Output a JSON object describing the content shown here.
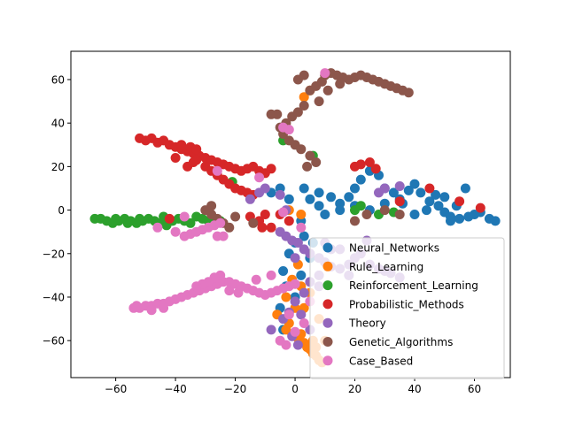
{
  "chart_data": {
    "type": "scatter",
    "title": "",
    "xlabel": "",
    "ylabel": "",
    "xlim": [
      -75.0,
      72.0
    ],
    "ylim": [
      -77.0,
      73.0
    ],
    "xticks": [
      -60,
      -40,
      -20,
      0,
      20,
      40,
      60
    ],
    "yticks": [
      -60,
      -40,
      -20,
      0,
      20,
      40,
      60
    ],
    "grid": false,
    "legend_position": "lower right",
    "series": [
      {
        "name": "Neural_Networks",
        "color": "#1f77b4",
        "points": [
          [
            3,
            10
          ],
          [
            5,
            5
          ],
          [
            8,
            8
          ],
          [
            12,
            6
          ],
          [
            15,
            3
          ],
          [
            18,
            6
          ],
          [
            20,
            10
          ],
          [
            22,
            14
          ],
          [
            25,
            18
          ],
          [
            28,
            16
          ],
          [
            30,
            10
          ],
          [
            33,
            8
          ],
          [
            35,
            5
          ],
          [
            38,
            9
          ],
          [
            40,
            12
          ],
          [
            42,
            8
          ],
          [
            45,
            4
          ],
          [
            48,
            2
          ],
          [
            50,
            -1
          ],
          [
            52,
            -3
          ],
          [
            55,
            -4
          ],
          [
            58,
            -3
          ],
          [
            60,
            -2
          ],
          [
            62,
            -1
          ],
          [
            65,
            -4
          ],
          [
            67,
            -5
          ],
          [
            30,
            3
          ],
          [
            25,
            0
          ],
          [
            20,
            2
          ],
          [
            15,
            0
          ],
          [
            10,
            -2
          ],
          [
            8,
            2
          ],
          [
            36,
            3
          ],
          [
            44,
            0
          ],
          [
            47,
            7
          ],
          [
            50,
            6
          ],
          [
            54,
            2
          ],
          [
            57,
            10
          ],
          [
            52,
            -5
          ],
          [
            40,
            -2
          ],
          [
            -2,
            5
          ],
          [
            -5,
            10
          ],
          [
            -8,
            8
          ],
          [
            2,
            -5
          ],
          [
            0,
            -15
          ],
          [
            -2,
            -20
          ],
          [
            -4,
            -28
          ],
          [
            -3,
            -35
          ],
          [
            -5,
            -45
          ],
          [
            -4,
            -55
          ],
          [
            0,
            -40
          ],
          [
            2,
            -30
          ],
          [
            5,
            -22
          ],
          [
            3,
            -12
          ],
          [
            6,
            -15
          ]
        ]
      },
      {
        "name": "Rule_Learning",
        "color": "#ff7f0e",
        "points": [
          [
            -3,
            -55
          ],
          [
            -1,
            -57
          ],
          [
            1,
            -59
          ],
          [
            3,
            -61
          ],
          [
            4,
            -63
          ],
          [
            5,
            -64
          ],
          [
            6,
            -66
          ],
          [
            7,
            -67
          ],
          [
            8,
            -69
          ],
          [
            9,
            -70
          ],
          [
            7,
            -63
          ],
          [
            6,
            -60
          ],
          [
            2,
            -57
          ],
          [
            -2,
            -52
          ],
          [
            0,
            -45
          ],
          [
            3,
            -45
          ],
          [
            5,
            -38
          ],
          [
            2,
            -35
          ],
          [
            -1,
            -32
          ],
          [
            1,
            -25
          ],
          [
            2,
            -2
          ],
          [
            -2,
            0
          ],
          [
            3,
            52
          ],
          [
            5,
            55
          ],
          [
            -6,
            -48
          ],
          [
            -3,
            -40
          ],
          [
            8,
            -50
          ],
          [
            10,
            -60
          ]
        ]
      },
      {
        "name": "Reinforcement_Learning",
        "color": "#2ca02c",
        "points": [
          [
            -67,
            -4
          ],
          [
            -65,
            -4
          ],
          [
            -63,
            -5
          ],
          [
            -61,
            -6
          ],
          [
            -59,
            -5
          ],
          [
            -57,
            -4
          ],
          [
            -55,
            -5
          ],
          [
            -53,
            -6
          ],
          [
            -51,
            -5
          ],
          [
            -49,
            -4
          ],
          [
            -47,
            -5
          ],
          [
            -45,
            -6
          ],
          [
            -43,
            -7
          ],
          [
            -41,
            -5
          ],
          [
            -39,
            -4
          ],
          [
            -37,
            -5
          ],
          [
            -35,
            -6
          ],
          [
            -33,
            -3
          ],
          [
            -31,
            -4
          ],
          [
            -29,
            -5
          ],
          [
            -27,
            -6
          ],
          [
            -25,
            -5
          ],
          [
            -60,
            -4
          ],
          [
            -56,
            -6
          ],
          [
            -44,
            -3
          ],
          [
            -52,
            -4
          ],
          [
            -21,
            13
          ],
          [
            -4,
            32
          ],
          [
            22,
            2
          ],
          [
            20,
            0
          ],
          [
            6,
            25
          ],
          [
            28,
            -2
          ],
          [
            33,
            -1
          ]
        ]
      },
      {
        "name": "Probabilistic_Methods",
        "color": "#d62728",
        "points": [
          [
            -52,
            33
          ],
          [
            -50,
            32
          ],
          [
            -48,
            33
          ],
          [
            -46,
            31
          ],
          [
            -44,
            32
          ],
          [
            -42,
            30
          ],
          [
            -40,
            29
          ],
          [
            -38,
            28
          ],
          [
            -36,
            27
          ],
          [
            -34,
            26
          ],
          [
            -32,
            25
          ],
          [
            -30,
            24
          ],
          [
            -28,
            23
          ],
          [
            -26,
            22
          ],
          [
            -24,
            21
          ],
          [
            -22,
            20
          ],
          [
            -20,
            19
          ],
          [
            -18,
            18
          ],
          [
            -16,
            19
          ],
          [
            -14,
            20
          ],
          [
            -12,
            18
          ],
          [
            -10,
            17
          ],
          [
            -8,
            19
          ],
          [
            -38,
            30
          ],
          [
            -35,
            29
          ],
          [
            -33,
            28
          ],
          [
            -30,
            20
          ],
          [
            -28,
            18
          ],
          [
            -26,
            16
          ],
          [
            -24,
            14
          ],
          [
            -22,
            12
          ],
          [
            -20,
            10
          ],
          [
            -18,
            9
          ],
          [
            -16,
            8
          ],
          [
            -14,
            7
          ],
          [
            -36,
            20
          ],
          [
            -33,
            23
          ],
          [
            -10,
            -2
          ],
          [
            -12,
            -5
          ],
          [
            -15,
            -3
          ],
          [
            20,
            20
          ],
          [
            22,
            21
          ],
          [
            25,
            22
          ],
          [
            27,
            19
          ],
          [
            -5,
            -2
          ],
          [
            -8,
            -8
          ],
          [
            -2,
            -5
          ],
          [
            35,
            4
          ],
          [
            -34,
            22
          ],
          [
            -40,
            24
          ],
          [
            62,
            1
          ],
          [
            55,
            4
          ],
          [
            45,
            10
          ],
          [
            -42,
            -4
          ],
          [
            -11,
            -8
          ]
        ]
      },
      {
        "name": "Theory",
        "color": "#9467bd",
        "points": [
          [
            -5,
            -10
          ],
          [
            -3,
            -12
          ],
          [
            -1,
            -14
          ],
          [
            1,
            -15
          ],
          [
            3,
            -18
          ],
          [
            5,
            -20
          ],
          [
            8,
            -22
          ],
          [
            10,
            -24
          ],
          [
            12,
            -26
          ],
          [
            15,
            -27
          ],
          [
            18,
            -25
          ],
          [
            20,
            -22
          ],
          [
            22,
            -20
          ],
          [
            25,
            -25
          ],
          [
            28,
            -27
          ],
          [
            30,
            -28
          ],
          [
            32,
            -29
          ],
          [
            35,
            -31
          ],
          [
            10,
            -15
          ],
          [
            12,
            -18
          ],
          [
            8,
            -30
          ],
          [
            5,
            -33
          ],
          [
            3,
            -38
          ],
          [
            0,
            -42
          ],
          [
            -2,
            -47
          ],
          [
            -4,
            -50
          ],
          [
            2,
            -48
          ],
          [
            -1,
            -58
          ],
          [
            5,
            -55
          ],
          [
            -15,
            5
          ],
          [
            -12,
            8
          ],
          [
            -5,
            7
          ],
          [
            -10,
            10
          ],
          [
            0,
            -22
          ],
          [
            15,
            -18
          ],
          [
            18,
            -30
          ],
          [
            24,
            -14
          ],
          [
            28,
            8
          ],
          [
            30,
            10
          ],
          [
            35,
            11
          ],
          [
            -8,
            -55
          ],
          [
            1,
            -62
          ],
          [
            8,
            -35
          ],
          [
            -3,
            0
          ]
        ]
      },
      {
        "name": "Genetic_Algorithms",
        "color": "#8c564b",
        "points": [
          [
            5,
            55
          ],
          [
            7,
            57
          ],
          [
            9,
            59
          ],
          [
            10,
            62
          ],
          [
            12,
            63
          ],
          [
            14,
            62
          ],
          [
            16,
            61
          ],
          [
            18,
            60
          ],
          [
            20,
            61
          ],
          [
            22,
            62
          ],
          [
            24,
            61
          ],
          [
            26,
            60
          ],
          [
            28,
            59
          ],
          [
            30,
            58
          ],
          [
            32,
            57
          ],
          [
            34,
            56
          ],
          [
            36,
            55
          ],
          [
            38,
            54
          ],
          [
            3,
            48
          ],
          [
            1,
            45
          ],
          [
            -1,
            43
          ],
          [
            -3,
            40
          ],
          [
            -5,
            38
          ],
          [
            -4,
            35
          ],
          [
            -2,
            32
          ],
          [
            0,
            30
          ],
          [
            2,
            28
          ],
          [
            5,
            25
          ],
          [
            7,
            22
          ],
          [
            4,
            20
          ],
          [
            -8,
            44
          ],
          [
            -6,
            44
          ],
          [
            1,
            60
          ],
          [
            3,
            62
          ],
          [
            -28,
            -2
          ],
          [
            -26,
            -4
          ],
          [
            -24,
            -6
          ],
          [
            -22,
            -8
          ],
          [
            -30,
            0
          ],
          [
            -28,
            2
          ],
          [
            20,
            -5
          ],
          [
            24,
            -2
          ],
          [
            30,
            0
          ],
          [
            35,
            -2
          ],
          [
            8,
            50
          ],
          [
            11,
            55
          ],
          [
            15,
            58
          ],
          [
            -14,
            -6
          ],
          [
            -20,
            -3
          ]
        ]
      },
      {
        "name": "Case_Based",
        "color": "#e377c2",
        "points": [
          [
            -54,
            -45
          ],
          [
            -52,
            -45
          ],
          [
            -50,
            -44
          ],
          [
            -48,
            -44
          ],
          [
            -46,
            -43
          ],
          [
            -44,
            -43
          ],
          [
            -42,
            -42
          ],
          [
            -40,
            -41
          ],
          [
            -38,
            -40
          ],
          [
            -36,
            -39
          ],
          [
            -34,
            -38
          ],
          [
            -32,
            -37
          ],
          [
            -30,
            -36
          ],
          [
            -28,
            -35
          ],
          [
            -26,
            -34
          ],
          [
            -24,
            -33
          ],
          [
            -22,
            -33
          ],
          [
            -20,
            -34
          ],
          [
            -18,
            -35
          ],
          [
            -16,
            -36
          ],
          [
            -14,
            -37
          ],
          [
            -12,
            -38
          ],
          [
            -10,
            -39
          ],
          [
            -8,
            -38
          ],
          [
            -6,
            -37
          ],
          [
            -4,
            -36
          ],
          [
            -2,
            -35
          ],
          [
            0,
            -34
          ],
          [
            -25,
            -30
          ],
          [
            -27,
            -31
          ],
          [
            -29,
            -33
          ],
          [
            -31,
            -34
          ],
          [
            -33,
            -35
          ],
          [
            -22,
            -37
          ],
          [
            -19,
            -38
          ],
          [
            -37,
            -12
          ],
          [
            -35,
            -11
          ],
          [
            -33,
            -10
          ],
          [
            -31,
            -9
          ],
          [
            -29,
            -8
          ],
          [
            -27,
            -7
          ],
          [
            -25,
            -6
          ],
          [
            -26,
            18
          ],
          [
            -12,
            15
          ],
          [
            -46,
            -8
          ],
          [
            -40,
            -10
          ],
          [
            -26,
            -12
          ],
          [
            -4,
            38
          ],
          [
            -2,
            37
          ],
          [
            10,
            63
          ],
          [
            -5,
            -60
          ],
          [
            -3,
            -62
          ],
          [
            0,
            -56
          ],
          [
            3,
            -52
          ],
          [
            -2,
            -48
          ],
          [
            5,
            -42
          ],
          [
            -8,
            -30
          ],
          [
            -13,
            -32
          ],
          [
            -4,
            -1
          ],
          [
            2,
            -8
          ],
          [
            -24,
            -12
          ],
          [
            -37,
            -3
          ],
          [
            -44,
            -45
          ],
          [
            -48,
            -46
          ],
          [
            -53,
            -44
          ]
        ]
      }
    ]
  }
}
